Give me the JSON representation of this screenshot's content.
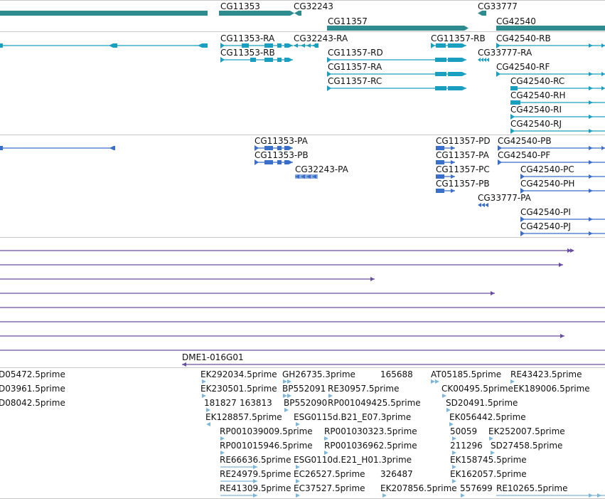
{
  "colors": {
    "gene": "#2e8b8f",
    "transcript": "#1a9fc0",
    "protein": "#3a6ec8",
    "alignment": "#6a4fa0",
    "est": "#7fb6d8",
    "separator": "#c8c8c8"
  },
  "tracks": {
    "genes": {
      "labels": [
        "CG11353",
        "CG32243",
        "CG11357",
        "CG33777",
        "CG42540"
      ]
    },
    "transcripts": {
      "labels": [
        "CG11353-RA",
        "CG32243-RA",
        "CG11357-RB",
        "CG42540-RB",
        "CG11353-RB",
        "CG11357-RD",
        "CG33777-RA",
        "CG11357-RA",
        "CG42540-RF",
        "CG11357-RC",
        "CG42540-RC",
        "CG42540-RH",
        "CG42540-RI",
        "CG42540-RJ"
      ]
    },
    "proteins": {
      "labels": [
        "CG11353-PA",
        "CG11357-PD",
        "CG42540-PB",
        "CG11353-PB",
        "CG11357-PA",
        "CG42540-PF",
        "CG32243-PA",
        "CG11357-PC",
        "CG42540-PC",
        "CG11357-PB",
        "CG42540-PH",
        "CG33777-PA",
        "CG42540-PI",
        "CG42540-PJ"
      ]
    },
    "alignments": {
      "labels": [
        "DME1-016G01"
      ]
    },
    "ests": {
      "labels": [
        "D05472.5prime",
        "EK292034.5prime",
        "GH26735.3prime",
        "165688",
        "AT05185.5prime",
        "RE43423.5prime",
        "D03961.5prime",
        "EK230501.5prime",
        "BP552091",
        "RE30957.5prime",
        "CK00495.5prime",
        "EK189006.5prime",
        "D08042.5prime",
        "181827",
        "163813",
        "BP552090",
        "RP001049425.5prime",
        "SD20491.5prime",
        "EK128857.5prime",
        "ESG0115d.B21_E07.3prime",
        "EK056442.5prime",
        "RP001039009.5prime",
        "RP001030323.5prime",
        "50059",
        "EK252007.5prime",
        "RP001015946.5prime",
        "RP001036962.5prime",
        "211296",
        "SD27458.5prime",
        "RE66636.5prime",
        "ESG0110d.E21_H01.3prime",
        "EK158745.5prime",
        "RE24979.5prime",
        "EC26527.5prime",
        "326487",
        "EK162057.5prime",
        "RE41309.5prime",
        "EC37527.5prime",
        "EK207856.5prime",
        "557699",
        "RE10265.5prime"
      ]
    }
  }
}
